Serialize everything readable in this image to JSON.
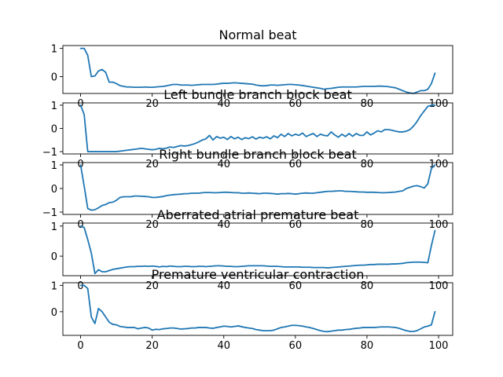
{
  "chart_data": [
    {
      "type": "line",
      "title": "Normal beat",
      "xlim": [
        -4.95,
        103.95
      ],
      "ylim": [
        -0.6,
        1.1
      ],
      "xticks": [
        0,
        20,
        40,
        60,
        80,
        100
      ],
      "yticks": [
        0,
        1
      ],
      "x": [
        0,
        1,
        2,
        3,
        4,
        5,
        6,
        7,
        8,
        9,
        10,
        11,
        12,
        13,
        14,
        15,
        16,
        17,
        18,
        19,
        20,
        21,
        22,
        23,
        24,
        25,
        26,
        27,
        28,
        29,
        30,
        31,
        32,
        33,
        34,
        35,
        36,
        37,
        38,
        39,
        40,
        41,
        42,
        43,
        44,
        45,
        46,
        47,
        48,
        49,
        50,
        51,
        52,
        53,
        54,
        55,
        56,
        57,
        58,
        59,
        60,
        61,
        62,
        63,
        64,
        65,
        66,
        67,
        68,
        69,
        70,
        71,
        72,
        73,
        74,
        75,
        76,
        77,
        78,
        79,
        80,
        81,
        82,
        83,
        84,
        85,
        86,
        87,
        88,
        89,
        90,
        91,
        92,
        93,
        94,
        95,
        96,
        97,
        98,
        99
      ],
      "values": [
        1.0,
        1.0,
        0.75,
        0.0,
        0.02,
        0.2,
        0.25,
        0.15,
        -0.2,
        -0.2,
        -0.25,
        -0.32,
        -0.35,
        -0.37,
        -0.37,
        -0.38,
        -0.38,
        -0.38,
        -0.37,
        -0.38,
        -0.38,
        -0.37,
        -0.36,
        -0.35,
        -0.33,
        -0.3,
        -0.28,
        -0.28,
        -0.3,
        -0.3,
        -0.3,
        -0.31,
        -0.3,
        -0.29,
        -0.28,
        -0.28,
        -0.28,
        -0.28,
        -0.27,
        -0.25,
        -0.24,
        -0.24,
        -0.23,
        -0.22,
        -0.23,
        -0.24,
        -0.25,
        -0.26,
        -0.27,
        -0.3,
        -0.32,
        -0.33,
        -0.32,
        -0.3,
        -0.3,
        -0.31,
        -0.3,
        -0.29,
        -0.28,
        -0.28,
        -0.29,
        -0.3,
        -0.32,
        -0.34,
        -0.36,
        -0.38,
        -0.4,
        -0.42,
        -0.45,
        -0.43,
        -0.42,
        -0.4,
        -0.38,
        -0.37,
        -0.37,
        -0.37,
        -0.37,
        -0.37,
        -0.36,
        -0.35,
        -0.35,
        -0.35,
        -0.35,
        -0.34,
        -0.34,
        -0.35,
        -0.36,
        -0.38,
        -0.4,
        -0.45,
        -0.5,
        -0.55,
        -0.58,
        -0.6,
        -0.55,
        -0.5,
        -0.5,
        -0.45,
        -0.25,
        0.12
      ]
    },
    {
      "type": "line",
      "title": "Left bundle branch block beat",
      "xlim": [
        -4.95,
        103.95
      ],
      "ylim": [
        -1.1,
        1.1
      ],
      "xticks": [
        0,
        20,
        40,
        60,
        80,
        100
      ],
      "yticks": [
        -1,
        0,
        1
      ],
      "x": [
        0,
        1,
        2,
        3,
        4,
        5,
        6,
        7,
        8,
        9,
        10,
        11,
        12,
        13,
        14,
        15,
        16,
        17,
        18,
        19,
        20,
        21,
        22,
        23,
        24,
        25,
        26,
        27,
        28,
        29,
        30,
        31,
        32,
        33,
        34,
        35,
        36,
        37,
        38,
        39,
        40,
        41,
        42,
        43,
        44,
        45,
        46,
        47,
        48,
        49,
        50,
        51,
        52,
        53,
        54,
        55,
        56,
        57,
        58,
        59,
        60,
        61,
        62,
        63,
        64,
        65,
        66,
        67,
        68,
        69,
        70,
        71,
        72,
        73,
        74,
        75,
        76,
        77,
        78,
        79,
        80,
        81,
        82,
        83,
        84,
        85,
        86,
        87,
        88,
        89,
        90,
        91,
        92,
        93,
        94,
        95,
        96,
        97,
        98,
        99
      ],
      "values": [
        1.0,
        0.6,
        -1.0,
        -1.0,
        -1.0,
        -1.0,
        -1.0,
        -1.0,
        -1.0,
        -1.0,
        -1.0,
        -0.98,
        -0.96,
        -0.94,
        -0.92,
        -0.9,
        -0.88,
        -0.86,
        -0.88,
        -0.9,
        -0.92,
        -0.9,
        -0.86,
        -0.88,
        -0.85,
        -0.8,
        -0.82,
        -0.78,
        -0.74,
        -0.76,
        -0.74,
        -0.7,
        -0.65,
        -0.58,
        -0.5,
        -0.45,
        -0.3,
        -0.5,
        -0.35,
        -0.42,
        -0.38,
        -0.48,
        -0.35,
        -0.45,
        -0.38,
        -0.48,
        -0.4,
        -0.44,
        -0.36,
        -0.46,
        -0.38,
        -0.42,
        -0.36,
        -0.45,
        -0.32,
        -0.4,
        -0.25,
        -0.35,
        -0.22,
        -0.32,
        -0.25,
        -0.3,
        -0.2,
        -0.35,
        -0.28,
        -0.22,
        -0.35,
        -0.25,
        -0.3,
        -0.32,
        -0.15,
        -0.28,
        -0.38,
        -0.25,
        -0.35,
        -0.22,
        -0.34,
        -0.22,
        -0.3,
        -0.3,
        -0.15,
        -0.28,
        -0.2,
        -0.1,
        -0.15,
        -0.05,
        -0.05,
        -0.08,
        -0.12,
        -0.15,
        -0.15,
        -0.12,
        -0.05,
        0.1,
        0.3,
        0.55,
        0.75,
        0.95,
        1.0,
        1.0
      ]
    },
    {
      "type": "line",
      "title": "Right bundle branch block beat",
      "xlim": [
        -4.95,
        103.95
      ],
      "ylim": [
        -1.1,
        1.1
      ],
      "xticks": [
        0,
        20,
        40,
        60,
        80,
        100
      ],
      "yticks": [
        -1,
        0,
        1
      ],
      "x": [
        0,
        1,
        2,
        3,
        4,
        5,
        6,
        7,
        8,
        9,
        10,
        11,
        12,
        13,
        14,
        15,
        16,
        17,
        18,
        19,
        20,
        21,
        22,
        23,
        24,
        25,
        26,
        27,
        28,
        29,
        30,
        31,
        32,
        33,
        34,
        35,
        36,
        37,
        38,
        39,
        40,
        41,
        42,
        43,
        44,
        45,
        46,
        47,
        48,
        49,
        50,
        51,
        52,
        53,
        54,
        55,
        56,
        57,
        58,
        59,
        60,
        61,
        62,
        63,
        64,
        65,
        66,
        67,
        68,
        69,
        70,
        71,
        72,
        73,
        74,
        75,
        76,
        77,
        78,
        79,
        80,
        81,
        82,
        83,
        84,
        85,
        86,
        87,
        88,
        89,
        90,
        91,
        92,
        93,
        94,
        95,
        96,
        97,
        98,
        99
      ],
      "values": [
        1.0,
        0.1,
        -0.85,
        -0.92,
        -0.9,
        -0.82,
        -0.72,
        -0.68,
        -0.6,
        -0.58,
        -0.5,
        -0.38,
        -0.35,
        -0.35,
        -0.35,
        -0.32,
        -0.32,
        -0.33,
        -0.34,
        -0.35,
        -0.38,
        -0.38,
        -0.36,
        -0.34,
        -0.3,
        -0.28,
        -0.26,
        -0.25,
        -0.24,
        -0.22,
        -0.22,
        -0.2,
        -0.2,
        -0.2,
        -0.18,
        -0.17,
        -0.17,
        -0.18,
        -0.18,
        -0.17,
        -0.16,
        -0.16,
        -0.17,
        -0.18,
        -0.18,
        -0.2,
        -0.2,
        -0.19,
        -0.2,
        -0.21,
        -0.22,
        -0.2,
        -0.2,
        -0.21,
        -0.22,
        -0.24,
        -0.22,
        -0.22,
        -0.21,
        -0.22,
        -0.24,
        -0.22,
        -0.2,
        -0.19,
        -0.2,
        -0.2,
        -0.18,
        -0.16,
        -0.14,
        -0.12,
        -0.12,
        -0.11,
        -0.1,
        -0.1,
        -0.12,
        -0.12,
        -0.13,
        -0.14,
        -0.15,
        -0.15,
        -0.16,
        -0.16,
        -0.16,
        -0.17,
        -0.18,
        -0.18,
        -0.17,
        -0.16,
        -0.15,
        -0.12,
        -0.1,
        0.0,
        0.05,
        0.1,
        0.12,
        0.08,
        0.02,
        0.2,
        0.85,
        1.0
      ]
    },
    {
      "type": "line",
      "title": "Aberrated atrial premature beat",
      "xlim": [
        -4.95,
        103.95
      ],
      "ylim": [
        -0.65,
        1.1
      ],
      "xticks": [
        0,
        20,
        40,
        60,
        80,
        100
      ],
      "yticks": [
        0,
        1
      ],
      "x": [
        0,
        1,
        2,
        3,
        4,
        5,
        6,
        7,
        8,
        9,
        10,
        11,
        12,
        13,
        14,
        15,
        16,
        17,
        18,
        19,
        20,
        21,
        22,
        23,
        24,
        25,
        26,
        27,
        28,
        29,
        30,
        31,
        32,
        33,
        34,
        35,
        36,
        37,
        38,
        39,
        40,
        41,
        42,
        43,
        44,
        45,
        46,
        47,
        48,
        49,
        50,
        51,
        52,
        53,
        54,
        55,
        56,
        57,
        58,
        59,
        60,
        61,
        62,
        63,
        64,
        65,
        66,
        67,
        68,
        69,
        70,
        71,
        72,
        73,
        74,
        75,
        76,
        77,
        78,
        79,
        80,
        81,
        82,
        83,
        84,
        85,
        86,
        87,
        88,
        89,
        90,
        91,
        92,
        93,
        94,
        95,
        96,
        97,
        98,
        99
      ],
      "values": [
        1.0,
        0.95,
        0.55,
        0.1,
        -0.58,
        -0.45,
        -0.52,
        -0.52,
        -0.48,
        -0.44,
        -0.42,
        -0.4,
        -0.38,
        -0.36,
        -0.35,
        -0.35,
        -0.34,
        -0.34,
        -0.33,
        -0.34,
        -0.33,
        -0.34,
        -0.36,
        -0.34,
        -0.35,
        -0.33,
        -0.34,
        -0.35,
        -0.35,
        -0.34,
        -0.34,
        -0.35,
        -0.35,
        -0.34,
        -0.34,
        -0.35,
        -0.34,
        -0.33,
        -0.32,
        -0.32,
        -0.33,
        -0.34,
        -0.34,
        -0.35,
        -0.35,
        -0.34,
        -0.33,
        -0.32,
        -0.32,
        -0.32,
        -0.32,
        -0.32,
        -0.33,
        -0.34,
        -0.34,
        -0.34,
        -0.35,
        -0.36,
        -0.36,
        -0.36,
        -0.36,
        -0.36,
        -0.37,
        -0.37,
        -0.37,
        -0.38,
        -0.38,
        -0.38,
        -0.38,
        -0.39,
        -0.38,
        -0.37,
        -0.36,
        -0.35,
        -0.34,
        -0.33,
        -0.32,
        -0.31,
        -0.3,
        -0.3,
        -0.29,
        -0.28,
        -0.28,
        -0.27,
        -0.27,
        -0.27,
        -0.27,
        -0.26,
        -0.26,
        -0.25,
        -0.24,
        -0.22,
        -0.21,
        -0.2,
        -0.2,
        -0.2,
        -0.21,
        -0.22,
        0.35,
        0.85
      ]
    },
    {
      "type": "line",
      "title": "Premature ventricular contraction",
      "xlim": [
        -4.95,
        103.95
      ],
      "ylim": [
        -0.9,
        1.1
      ],
      "xticks": [
        0,
        20,
        40,
        60,
        80,
        100
      ],
      "xtick_labels": [
        "0",
        "20",
        "40",
        "60",
        "80",
        "100"
      ],
      "yticks": [
        0,
        1
      ],
      "x": [
        0,
        1,
        2,
        3,
        4,
        5,
        6,
        7,
        8,
        9,
        10,
        11,
        12,
        13,
        14,
        15,
        16,
        17,
        18,
        19,
        20,
        21,
        22,
        23,
        24,
        25,
        26,
        27,
        28,
        29,
        30,
        31,
        32,
        33,
        34,
        35,
        36,
        37,
        38,
        39,
        40,
        41,
        42,
        43,
        44,
        45,
        46,
        47,
        48,
        49,
        50,
        51,
        52,
        53,
        54,
        55,
        56,
        57,
        58,
        59,
        60,
        61,
        62,
        63,
        64,
        65,
        66,
        67,
        68,
        69,
        70,
        71,
        72,
        73,
        74,
        75,
        76,
        77,
        78,
        79,
        80,
        81,
        82,
        83,
        84,
        85,
        86,
        87,
        88,
        89,
        90,
        91,
        92,
        93,
        94,
        95,
        96,
        97,
        98,
        99
      ],
      "values": [
        1.0,
        1.0,
        0.88,
        -0.2,
        -0.45,
        0.12,
        0.0,
        -0.2,
        -0.4,
        -0.48,
        -0.5,
        -0.56,
        -0.58,
        -0.6,
        -0.6,
        -0.6,
        -0.65,
        -0.62,
        -0.6,
        -0.62,
        -0.7,
        -0.67,
        -0.68,
        -0.65,
        -0.64,
        -0.62,
        -0.62,
        -0.64,
        -0.66,
        -0.65,
        -0.64,
        -0.62,
        -0.62,
        -0.6,
        -0.6,
        -0.6,
        -0.62,
        -0.63,
        -0.6,
        -0.58,
        -0.55,
        -0.56,
        -0.58,
        -0.56,
        -0.54,
        -0.57,
        -0.6,
        -0.62,
        -0.64,
        -0.68,
        -0.7,
        -0.72,
        -0.72,
        -0.72,
        -0.7,
        -0.65,
        -0.6,
        -0.58,
        -0.55,
        -0.52,
        -0.52,
        -0.53,
        -0.55,
        -0.58,
        -0.6,
        -0.64,
        -0.68,
        -0.72,
        -0.75,
        -0.76,
        -0.74,
        -0.72,
        -0.7,
        -0.7,
        -0.68,
        -0.67,
        -0.65,
        -0.63,
        -0.62,
        -0.6,
        -0.6,
        -0.6,
        -0.6,
        -0.59,
        -0.58,
        -0.58,
        -0.58,
        -0.59,
        -0.6,
        -0.63,
        -0.68,
        -0.72,
        -0.75,
        -0.75,
        -0.72,
        -0.65,
        -0.58,
        -0.55,
        -0.5,
        0.0
      ]
    }
  ]
}
